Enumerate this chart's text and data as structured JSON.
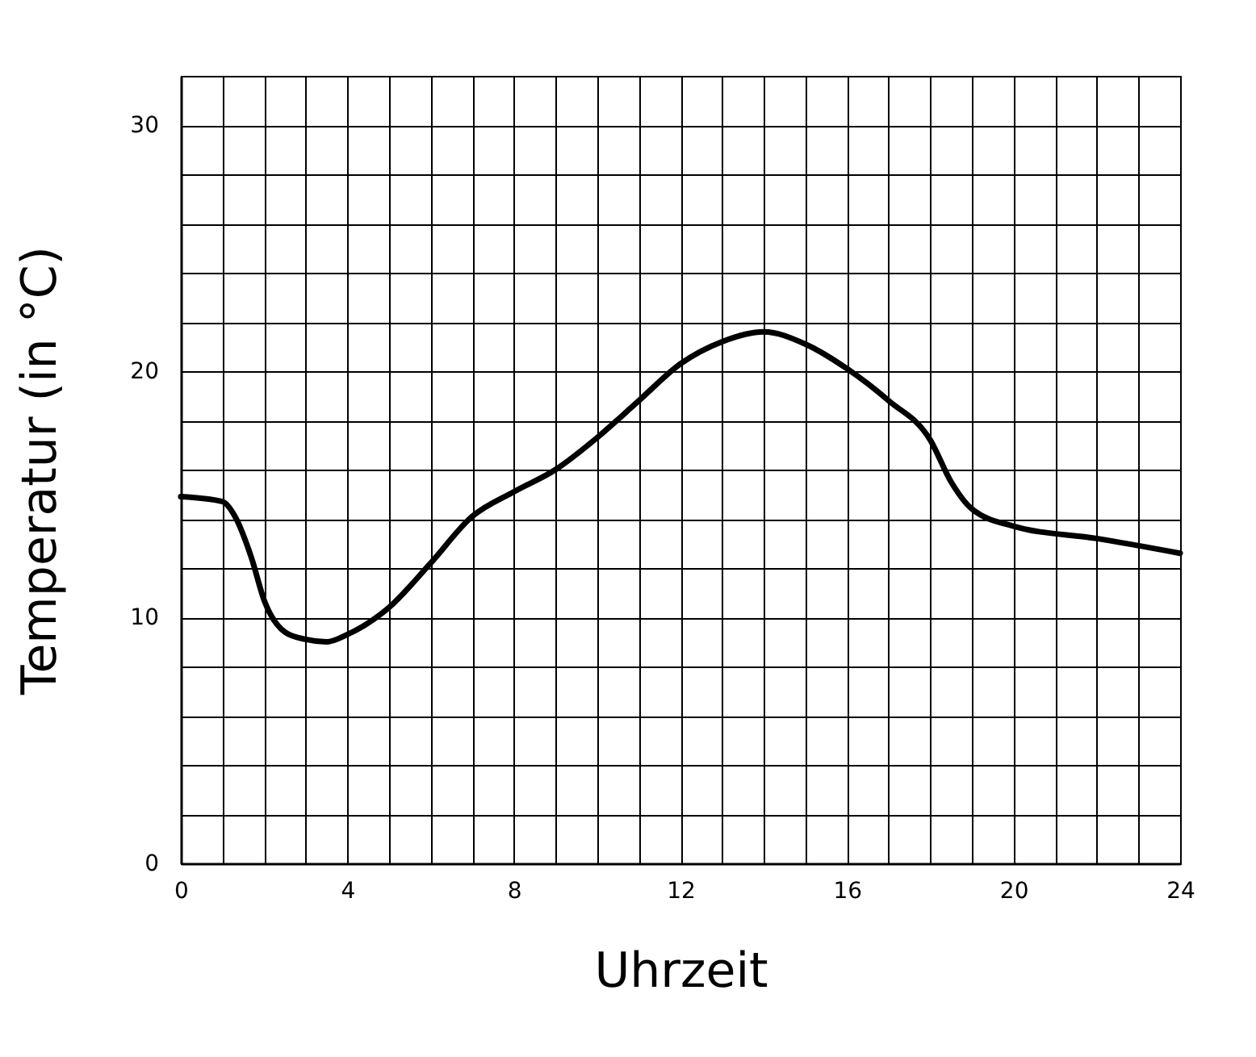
{
  "chart_data": {
    "type": "line",
    "xlabel": "Uhrzeit",
    "ylabel": "Temperatur (in °C)",
    "x": [
      0,
      1,
      1.3,
      1.7,
      2,
      2.5,
      3,
      3.5,
      4,
      5,
      6,
      7,
      8,
      9,
      10,
      11,
      12,
      13,
      14,
      15,
      16,
      17,
      18,
      18.5,
      19,
      20,
      22,
      24
    ],
    "series": [
      {
        "color": "#000000",
        "values": [
          14.9,
          14.7,
          14.1,
          12.4,
          10.7,
          9.4,
          9.1,
          9.0,
          9.3,
          10.4,
          12.2,
          14.1,
          15.1,
          16.0,
          17.3,
          18.8,
          20.3,
          21.2,
          21.6,
          21.1,
          20.1,
          18.8,
          17.2,
          15.5,
          14.4,
          13.7,
          13.2,
          12.6
        ]
      }
    ],
    "xlim": [
      0,
      24
    ],
    "ylim": [
      0,
      32
    ],
    "xticks": [
      0,
      {
        "value": 1,
        "label": null
      },
      {
        "value": 2,
        "label": null
      },
      {
        "value": 3,
        "label": null
      },
      4,
      {
        "value": 5,
        "label": null
      },
      {
        "value": 6,
        "label": null
      },
      {
        "value": 7,
        "label": null
      },
      8,
      {
        "value": 9,
        "label": null
      },
      {
        "value": 10,
        "label": null
      },
      {
        "value": 11,
        "label": null
      },
      12,
      {
        "value": 13,
        "label": null
      },
      {
        "value": 14,
        "label": null
      },
      {
        "value": 15,
        "label": null
      },
      16,
      {
        "value": 17,
        "label": null
      },
      {
        "value": 18,
        "label": null
      },
      {
        "value": 19,
        "label": null
      },
      20,
      {
        "value": 21,
        "label": null
      },
      {
        "value": 22,
        "label": null
      },
      {
        "value": 23,
        "label": null
      },
      24
    ],
    "yticks": [
      0,
      {
        "value": 2,
        "label": null
      },
      {
        "value": 4,
        "label": null
      },
      {
        "value": 6,
        "label": null
      },
      {
        "value": 8,
        "label": null
      },
      10,
      {
        "value": 12,
        "label": null
      },
      {
        "value": 14,
        "label": null
      },
      {
        "value": 16,
        "label": null
      },
      {
        "value": 18,
        "label": null
      },
      20,
      {
        "value": 22,
        "label": null
      },
      {
        "value": 24,
        "label": null
      },
      {
        "value": 26,
        "label": null
      },
      {
        "value": 28,
        "label": null
      },
      30,
      {
        "value": 32,
        "label": null
      }
    ],
    "grid": true,
    "marker": "none",
    "line_style": "solid"
  }
}
